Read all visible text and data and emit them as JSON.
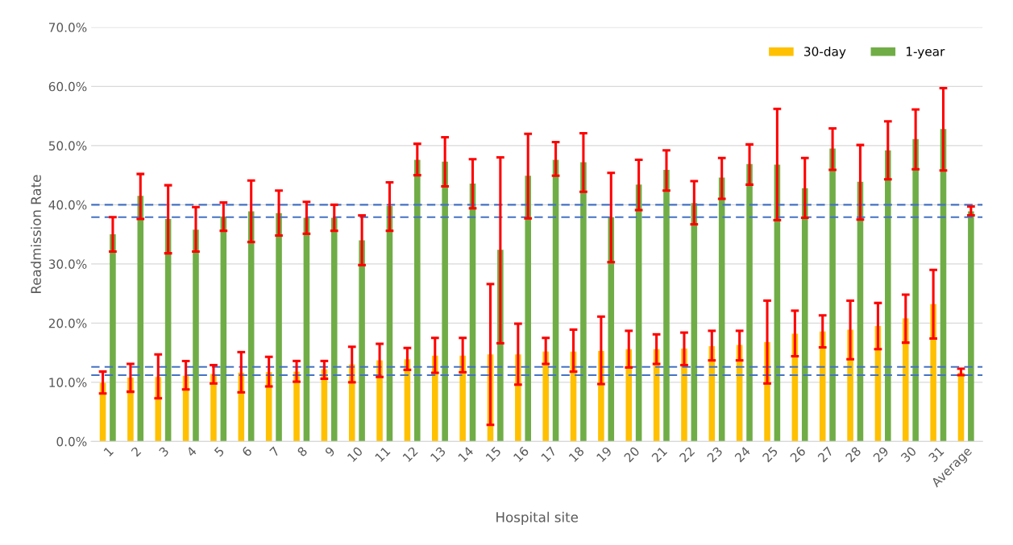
{
  "chart_data": {
    "type": "bar",
    "xlabel": "Hospital site",
    "ylabel": "Readmission Rate",
    "categories": [
      "1",
      "2",
      "3",
      "4",
      "5",
      "6",
      "7",
      "8",
      "9",
      "10",
      "11",
      "12",
      "13",
      "14",
      "15",
      "16",
      "17",
      "18",
      "19",
      "20",
      "21",
      "22",
      "23",
      "24",
      "25",
      "26",
      "27",
      "28",
      "29",
      "30",
      "31",
      "Average"
    ],
    "series": [
      {
        "name": "30-day",
        "color": "#ffc000",
        "values": [
          9.9,
          10.8,
          10.9,
          11.1,
          11.4,
          11.6,
          11.7,
          11.8,
          12.2,
          13.0,
          13.7,
          13.9,
          14.5,
          14.5,
          14.7,
          14.7,
          15.2,
          15.2,
          15.3,
          15.6,
          15.6,
          15.7,
          16.1,
          16.3,
          16.8,
          18.2,
          18.6,
          18.9,
          19.5,
          20.8,
          23.2,
          11.6
        ],
        "errors": [
          [
            8.1,
            11.8
          ],
          [
            8.4,
            13.1
          ],
          [
            7.3,
            14.7
          ],
          [
            8.8,
            13.6
          ],
          [
            9.8,
            12.9
          ],
          [
            8.3,
            15.1
          ],
          [
            9.3,
            14.3
          ],
          [
            10.1,
            13.6
          ],
          [
            10.6,
            13.6
          ],
          [
            10.0,
            16.0
          ],
          [
            10.9,
            16.5
          ],
          [
            12.1,
            15.8
          ],
          [
            11.6,
            17.5
          ],
          [
            11.7,
            17.5
          ],
          [
            2.8,
            26.6
          ],
          [
            9.6,
            19.9
          ],
          [
            13.1,
            17.5
          ],
          [
            11.8,
            18.9
          ],
          [
            9.7,
            21.1
          ],
          [
            12.5,
            18.7
          ],
          [
            13.1,
            18.1
          ],
          [
            12.9,
            18.4
          ],
          [
            13.7,
            18.7
          ],
          [
            13.7,
            18.7
          ],
          [
            9.8,
            23.8
          ],
          [
            14.4,
            22.1
          ],
          [
            15.9,
            21.3
          ],
          [
            13.9,
            23.8
          ],
          [
            15.6,
            23.4
          ],
          [
            16.7,
            24.8
          ],
          [
            17.4,
            29.0
          ],
          [
            11.2,
            12.3
          ]
        ]
      },
      {
        "name": "1-year",
        "color": "#70ad47",
        "values": [
          35.0,
          41.5,
          37.6,
          35.8,
          38.0,
          38.9,
          38.6,
          37.8,
          37.8,
          34.0,
          39.8,
          47.6,
          47.3,
          43.6,
          32.4,
          44.9,
          47.6,
          47.2,
          37.9,
          43.4,
          45.9,
          40.3,
          44.6,
          46.9,
          46.8,
          42.8,
          49.5,
          43.9,
          49.2,
          51.1,
          52.8,
          38.9
        ],
        "errors": [
          [
            32.1,
            37.9
          ],
          [
            37.6,
            45.2
          ],
          [
            31.8,
            43.3
          ],
          [
            32.1,
            39.6
          ],
          [
            35.6,
            40.4
          ],
          [
            33.7,
            44.1
          ],
          [
            34.8,
            42.4
          ],
          [
            35.1,
            40.5
          ],
          [
            35.6,
            40.0
          ],
          [
            29.8,
            38.2
          ],
          [
            35.6,
            43.8
          ],
          [
            45.0,
            50.3
          ],
          [
            43.1,
            51.4
          ],
          [
            39.4,
            47.7
          ],
          [
            16.6,
            48.0
          ],
          [
            37.7,
            52.0
          ],
          [
            44.9,
            50.6
          ],
          [
            42.2,
            52.1
          ],
          [
            30.3,
            45.4
          ],
          [
            39.1,
            47.6
          ],
          [
            42.4,
            49.2
          ],
          [
            36.7,
            44.0
          ],
          [
            41.0,
            47.9
          ],
          [
            43.4,
            50.2
          ],
          [
            37.4,
            56.2
          ],
          [
            37.8,
            47.9
          ],
          [
            45.9,
            52.9
          ],
          [
            37.5,
            50.1
          ],
          [
            44.3,
            54.1
          ],
          [
            46.0,
            56.1
          ],
          [
            45.8,
            59.7
          ],
          [
            38.2,
            39.7
          ]
        ]
      }
    ],
    "ylim": [
      0,
      70
    ],
    "yticks": [
      {
        "value": 0,
        "label": "0.0%"
      },
      {
        "value": 10,
        "label": "10.0%"
      },
      {
        "value": 20,
        "label": "20.0%"
      },
      {
        "value": 30,
        "label": "30.0%"
      },
      {
        "value": 40,
        "label": "40.0%"
      },
      {
        "value": 50,
        "label": "50.0%"
      },
      {
        "value": 60,
        "label": "60.0%"
      },
      {
        "value": 70,
        "label": "70.0%"
      }
    ],
    "ref_lines": [
      {
        "axis": "y",
        "value": 40.0,
        "color": "#4472c4",
        "line_style": "dashed"
      },
      {
        "axis": "y",
        "value": 37.9,
        "color": "#4472c4",
        "line_style": "dashed"
      },
      {
        "axis": "y",
        "value": 12.6,
        "color": "#4472c4",
        "line_style": "dashed"
      },
      {
        "axis": "y",
        "value": 11.2,
        "color": "#4472c4",
        "line_style": "dashed"
      }
    ],
    "grid": "y",
    "legend": "top right"
  }
}
